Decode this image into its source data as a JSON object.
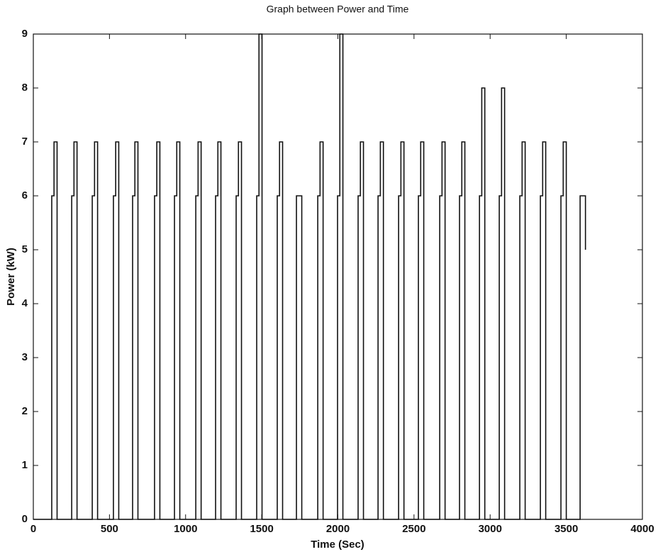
{
  "chart_data": {
    "type": "line",
    "title": "Graph between Power and Time",
    "x_label": "Time (Sec)",
    "y_label": "Power (kW)",
    "xlim": [
      0,
      4000
    ],
    "xticks": [
      0,
      500,
      1000,
      1500,
      2000,
      2500,
      3000,
      3500,
      4000
    ],
    "ylim": [
      0,
      9
    ],
    "yticks": [
      0,
      1,
      2,
      3,
      4,
      5,
      6,
      7,
      8,
      9
    ],
    "grid": false,
    "series": [
      {
        "color": "#111111",
        "x": [
          0,
          121,
          121,
          136,
          136,
          156,
          156,
          252,
          252,
          267,
          267,
          287,
          287,
          387,
          387,
          402,
          402,
          422,
          422,
          526,
          526,
          541,
          541,
          561,
          561,
          652,
          652,
          667,
          667,
          687,
          687,
          796,
          796,
          811,
          811,
          831,
          831,
          927,
          927,
          942,
          942,
          962,
          962,
          1067,
          1067,
          1082,
          1082,
          1102,
          1102,
          1197,
          1197,
          1212,
          1212,
          1232,
          1232,
          1332,
          1332,
          1347,
          1347,
          1367,
          1367,
          1467,
          1467,
          1482,
          1482,
          1502,
          1502,
          1602,
          1602,
          1617,
          1617,
          1637,
          1637,
          1728,
          1728,
          1743,
          1743,
          1763,
          1763,
          1868,
          1868,
          1883,
          1883,
          1903,
          1903,
          1998,
          1998,
          2013,
          2013,
          2033,
          2033,
          2133,
          2133,
          2148,
          2148,
          2168,
          2168,
          2264,
          2264,
          2279,
          2279,
          2299,
          2299,
          2399,
          2399,
          2414,
          2414,
          2434,
          2434,
          2529,
          2529,
          2544,
          2544,
          2564,
          2564,
          2669,
          2669,
          2684,
          2684,
          2704,
          2704,
          2799,
          2799,
          2814,
          2814,
          2834,
          2834,
          2930,
          2930,
          2945,
          2945,
          2965,
          2965,
          3060,
          3060,
          3075,
          3075,
          3095,
          3095,
          3195,
          3195,
          3210,
          3210,
          3230,
          3230,
          3330,
          3330,
          3345,
          3345,
          3365,
          3365,
          3465,
          3465,
          3480,
          3480,
          3500,
          3500,
          3591,
          3591,
          3606,
          3606,
          3626,
          3626
        ],
        "values": [
          0,
          0,
          6,
          6,
          7,
          7,
          0,
          0,
          6,
          6,
          7,
          7,
          0,
          0,
          6,
          6,
          7,
          7,
          0,
          0,
          6,
          6,
          7,
          7,
          0,
          0,
          6,
          6,
          7,
          7,
          0,
          0,
          6,
          6,
          7,
          7,
          0,
          0,
          6,
          6,
          7,
          7,
          0,
          0,
          6,
          6,
          7,
          7,
          0,
          0,
          6,
          6,
          7,
          7,
          0,
          0,
          6,
          6,
          7,
          7,
          0,
          0,
          6,
          6,
          9,
          9,
          0,
          0,
          6,
          6,
          7,
          7,
          0,
          0,
          6,
          6,
          6,
          6,
          0,
          0,
          6,
          6,
          7,
          7,
          0,
          0,
          6,
          6,
          9,
          9,
          0,
          0,
          6,
          6,
          7,
          7,
          0,
          0,
          6,
          6,
          7,
          7,
          0,
          0,
          6,
          6,
          7,
          7,
          0,
          0,
          6,
          6,
          7,
          7,
          0,
          0,
          6,
          6,
          7,
          7,
          0,
          0,
          6,
          6,
          7,
          7,
          0,
          0,
          6,
          6,
          8,
          8,
          0,
          0,
          6,
          6,
          8,
          8,
          0,
          0,
          6,
          6,
          7,
          7,
          0,
          0,
          6,
          6,
          7,
          7,
          0,
          0,
          6,
          6,
          7,
          7,
          0,
          0,
          6,
          6,
          6,
          6,
          5
        ]
      }
    ]
  }
}
